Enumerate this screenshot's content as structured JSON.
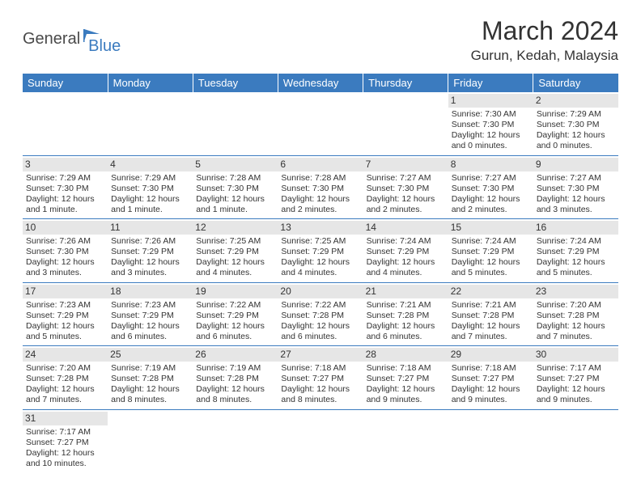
{
  "logo": {
    "text1": "General",
    "text2": "Blue"
  },
  "title": "March 2024",
  "subtitle": "Gurun, Kedah, Malaysia",
  "colors": {
    "header_bg": "#3b7bbf",
    "daynum_bg": "#e6e6e6",
    "border": "#3b7bbf"
  },
  "weekdays": [
    "Sunday",
    "Monday",
    "Tuesday",
    "Wednesday",
    "Thursday",
    "Friday",
    "Saturday"
  ],
  "weeks": [
    [
      {
        "n": "",
        "rise": "",
        "set": "",
        "day": ""
      },
      {
        "n": "",
        "rise": "",
        "set": "",
        "day": ""
      },
      {
        "n": "",
        "rise": "",
        "set": "",
        "day": ""
      },
      {
        "n": "",
        "rise": "",
        "set": "",
        "day": ""
      },
      {
        "n": "",
        "rise": "",
        "set": "",
        "day": ""
      },
      {
        "n": "1",
        "rise": "Sunrise: 7:30 AM",
        "set": "Sunset: 7:30 PM",
        "day": "Daylight: 12 hours and 0 minutes."
      },
      {
        "n": "2",
        "rise": "Sunrise: 7:29 AM",
        "set": "Sunset: 7:30 PM",
        "day": "Daylight: 12 hours and 0 minutes."
      }
    ],
    [
      {
        "n": "3",
        "rise": "Sunrise: 7:29 AM",
        "set": "Sunset: 7:30 PM",
        "day": "Daylight: 12 hours and 1 minute."
      },
      {
        "n": "4",
        "rise": "Sunrise: 7:29 AM",
        "set": "Sunset: 7:30 PM",
        "day": "Daylight: 12 hours and 1 minute."
      },
      {
        "n": "5",
        "rise": "Sunrise: 7:28 AM",
        "set": "Sunset: 7:30 PM",
        "day": "Daylight: 12 hours and 1 minute."
      },
      {
        "n": "6",
        "rise": "Sunrise: 7:28 AM",
        "set": "Sunset: 7:30 PM",
        "day": "Daylight: 12 hours and 2 minutes."
      },
      {
        "n": "7",
        "rise": "Sunrise: 7:27 AM",
        "set": "Sunset: 7:30 PM",
        "day": "Daylight: 12 hours and 2 minutes."
      },
      {
        "n": "8",
        "rise": "Sunrise: 7:27 AM",
        "set": "Sunset: 7:30 PM",
        "day": "Daylight: 12 hours and 2 minutes."
      },
      {
        "n": "9",
        "rise": "Sunrise: 7:27 AM",
        "set": "Sunset: 7:30 PM",
        "day": "Daylight: 12 hours and 3 minutes."
      }
    ],
    [
      {
        "n": "10",
        "rise": "Sunrise: 7:26 AM",
        "set": "Sunset: 7:30 PM",
        "day": "Daylight: 12 hours and 3 minutes."
      },
      {
        "n": "11",
        "rise": "Sunrise: 7:26 AM",
        "set": "Sunset: 7:29 PM",
        "day": "Daylight: 12 hours and 3 minutes."
      },
      {
        "n": "12",
        "rise": "Sunrise: 7:25 AM",
        "set": "Sunset: 7:29 PM",
        "day": "Daylight: 12 hours and 4 minutes."
      },
      {
        "n": "13",
        "rise": "Sunrise: 7:25 AM",
        "set": "Sunset: 7:29 PM",
        "day": "Daylight: 12 hours and 4 minutes."
      },
      {
        "n": "14",
        "rise": "Sunrise: 7:24 AM",
        "set": "Sunset: 7:29 PM",
        "day": "Daylight: 12 hours and 4 minutes."
      },
      {
        "n": "15",
        "rise": "Sunrise: 7:24 AM",
        "set": "Sunset: 7:29 PM",
        "day": "Daylight: 12 hours and 5 minutes."
      },
      {
        "n": "16",
        "rise": "Sunrise: 7:24 AM",
        "set": "Sunset: 7:29 PM",
        "day": "Daylight: 12 hours and 5 minutes."
      }
    ],
    [
      {
        "n": "17",
        "rise": "Sunrise: 7:23 AM",
        "set": "Sunset: 7:29 PM",
        "day": "Daylight: 12 hours and 5 minutes."
      },
      {
        "n": "18",
        "rise": "Sunrise: 7:23 AM",
        "set": "Sunset: 7:29 PM",
        "day": "Daylight: 12 hours and 6 minutes."
      },
      {
        "n": "19",
        "rise": "Sunrise: 7:22 AM",
        "set": "Sunset: 7:29 PM",
        "day": "Daylight: 12 hours and 6 minutes."
      },
      {
        "n": "20",
        "rise": "Sunrise: 7:22 AM",
        "set": "Sunset: 7:28 PM",
        "day": "Daylight: 12 hours and 6 minutes."
      },
      {
        "n": "21",
        "rise": "Sunrise: 7:21 AM",
        "set": "Sunset: 7:28 PM",
        "day": "Daylight: 12 hours and 6 minutes."
      },
      {
        "n": "22",
        "rise": "Sunrise: 7:21 AM",
        "set": "Sunset: 7:28 PM",
        "day": "Daylight: 12 hours and 7 minutes."
      },
      {
        "n": "23",
        "rise": "Sunrise: 7:20 AM",
        "set": "Sunset: 7:28 PM",
        "day": "Daylight: 12 hours and 7 minutes."
      }
    ],
    [
      {
        "n": "24",
        "rise": "Sunrise: 7:20 AM",
        "set": "Sunset: 7:28 PM",
        "day": "Daylight: 12 hours and 7 minutes."
      },
      {
        "n": "25",
        "rise": "Sunrise: 7:19 AM",
        "set": "Sunset: 7:28 PM",
        "day": "Daylight: 12 hours and 8 minutes."
      },
      {
        "n": "26",
        "rise": "Sunrise: 7:19 AM",
        "set": "Sunset: 7:28 PM",
        "day": "Daylight: 12 hours and 8 minutes."
      },
      {
        "n": "27",
        "rise": "Sunrise: 7:18 AM",
        "set": "Sunset: 7:27 PM",
        "day": "Daylight: 12 hours and 8 minutes."
      },
      {
        "n": "28",
        "rise": "Sunrise: 7:18 AM",
        "set": "Sunset: 7:27 PM",
        "day": "Daylight: 12 hours and 9 minutes."
      },
      {
        "n": "29",
        "rise": "Sunrise: 7:18 AM",
        "set": "Sunset: 7:27 PM",
        "day": "Daylight: 12 hours and 9 minutes."
      },
      {
        "n": "30",
        "rise": "Sunrise: 7:17 AM",
        "set": "Sunset: 7:27 PM",
        "day": "Daylight: 12 hours and 9 minutes."
      }
    ],
    [
      {
        "n": "31",
        "rise": "Sunrise: 7:17 AM",
        "set": "Sunset: 7:27 PM",
        "day": "Daylight: 12 hours and 10 minutes."
      },
      {
        "n": "",
        "rise": "",
        "set": "",
        "day": ""
      },
      {
        "n": "",
        "rise": "",
        "set": "",
        "day": ""
      },
      {
        "n": "",
        "rise": "",
        "set": "",
        "day": ""
      },
      {
        "n": "",
        "rise": "",
        "set": "",
        "day": ""
      },
      {
        "n": "",
        "rise": "",
        "set": "",
        "day": ""
      },
      {
        "n": "",
        "rise": "",
        "set": "",
        "day": ""
      }
    ]
  ]
}
